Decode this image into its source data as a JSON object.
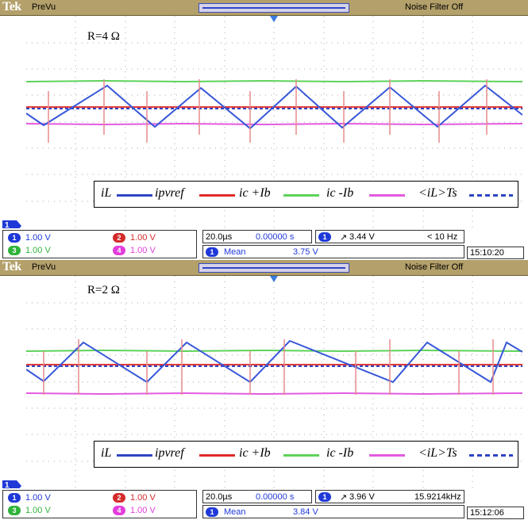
{
  "panels": [
    {
      "brand": "Tek",
      "mode": "PreVu",
      "noise_filter": "Noise Filter Off",
      "resistance_label": "R=4 Ω",
      "ch1_marker": "1",
      "legend": {
        "iL": "iL",
        "ipvref": "ipvref",
        "ic_plus": "ic +Ib",
        "ic_minus": "ic -Ib",
        "avg": "<iL>Ts"
      },
      "channels": [
        {
          "num": "1",
          "scale": "1.00 V",
          "color": "#1f39d8"
        },
        {
          "num": "2",
          "scale": "1.00 V",
          "color": "#d42a2a"
        },
        {
          "num": "3",
          "scale": "1.00 V",
          "color": "#2fb33a"
        },
        {
          "num": "4",
          "scale": "1.00 V",
          "color": "#e23ddc"
        }
      ],
      "timebase": "20.0µs",
      "delay": "0.00000 s",
      "trigger_channel": "1",
      "trigger_level": "3.44 V",
      "trigger_freq": "< 10 Hz",
      "measure_channel": "1",
      "measure_label": "Mean",
      "measure_value": "3.75 V",
      "clock": "15:10:20"
    },
    {
      "brand": "Tek",
      "mode": "PreVu",
      "noise_filter": "Noise Filter Off",
      "resistance_label": "R=2 Ω",
      "ch1_marker": "1",
      "legend": {
        "iL": "iL",
        "ipvref": "ipvref",
        "ic_plus": "ic +Ib",
        "ic_minus": "ic -Ib",
        "avg": "<iL>Ts"
      },
      "channels": [
        {
          "num": "1",
          "scale": "1.00 V",
          "color": "#1f39d8"
        },
        {
          "num": "2",
          "scale": "1.00 V",
          "color": "#d42a2a"
        },
        {
          "num": "3",
          "scale": "1.00 V",
          "color": "#2fb33a"
        },
        {
          "num": "4",
          "scale": "1.00 V",
          "color": "#e23ddc"
        }
      ],
      "timebase": "20.0µs",
      "delay": "0.00000 s",
      "trigger_channel": "1",
      "trigger_level": "3.96 V",
      "trigger_freq": "15.9214kHz",
      "measure_channel": "1",
      "measure_label": "Mean",
      "measure_value": "3.84 V",
      "clock": "15:12:06"
    }
  ]
}
